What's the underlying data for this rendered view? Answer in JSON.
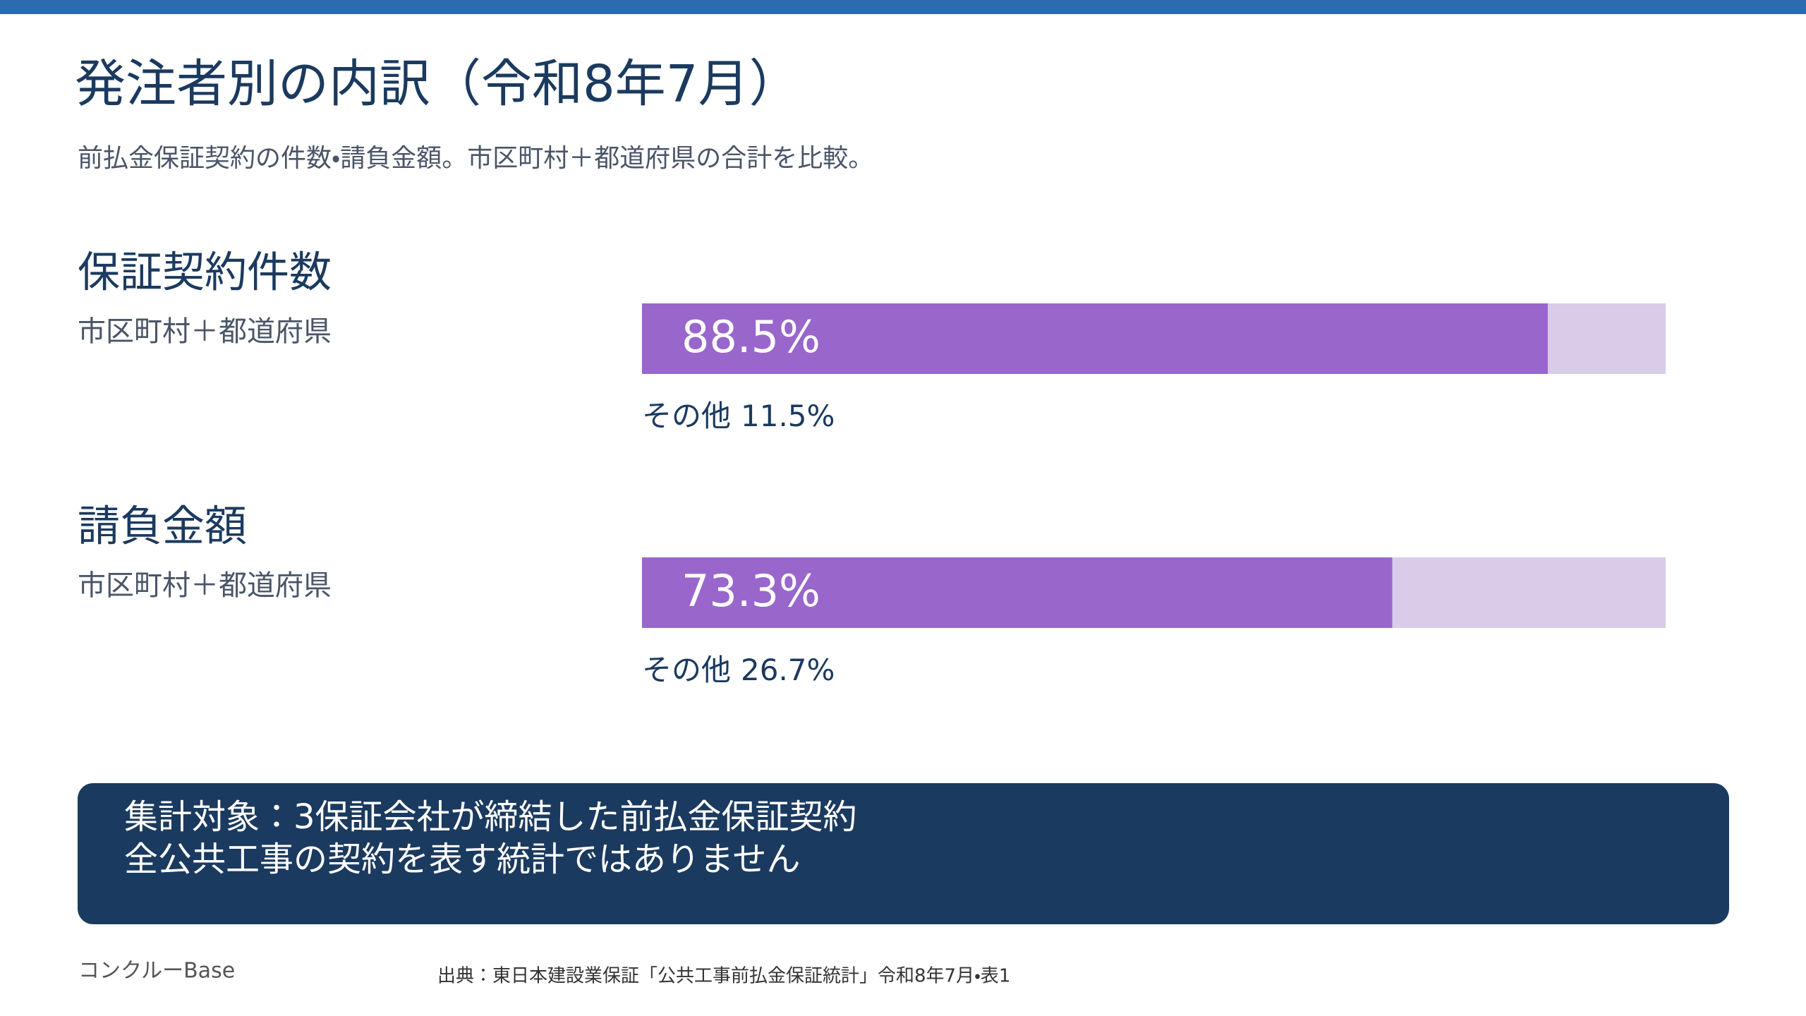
{
  "header": {
    "title": "発注者別の内訳（令和8年7月）",
    "subtitle": "前払金保証契約の件数・請負金額。市区町村＋都道府県の合計を比較。"
  },
  "chart_data": [
    {
      "type": "stacked-bar",
      "title": "保証契約件数",
      "categories": [
        "市区町村＋都道府県"
      ],
      "xlim": [
        0,
        100
      ],
      "series": [
        {
          "color": "#9966cc",
          "values": [
            88.5
          ],
          "value_labels": [
            "88.5%"
          ]
        },
        {
          "name": "その他",
          "color": "#d8cce9",
          "values": [
            11.5
          ],
          "value_labels": [
            "11.5%"
          ]
        }
      ]
    },
    {
      "type": "stacked-bar",
      "title": "請負金額",
      "categories": [
        "市区町村＋都道府県"
      ],
      "xlim": [
        0,
        100
      ],
      "series": [
        {
          "color": "#9966cc",
          "values": [
            73.3
          ],
          "value_labels": [
            "73.3%"
          ]
        },
        {
          "name": "その他",
          "color": "#d8cce9",
          "values": [
            26.7
          ],
          "value_labels": [
            "26.7%"
          ]
        }
      ]
    }
  ],
  "note": {
    "lines": [
      "集計対象：3保証会社が締結した前払金保証契約",
      "全公共工事の契約を表す統計ではありません"
    ]
  },
  "footer": {
    "brand": "コンクルーBase",
    "source": "出典：東日本建設業保証「公共工事前払金保証統計」令和8年7月・表1"
  }
}
